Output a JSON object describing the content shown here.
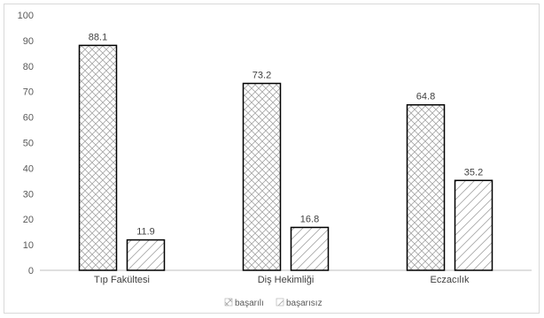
{
  "chart_data": {
    "type": "bar",
    "categories": [
      "Tıp Fakültesi",
      "Diş Hekimliği",
      "Eczacılık"
    ],
    "series": [
      {
        "name": "başarılı",
        "values": [
          88.1,
          73.2,
          64.8
        ],
        "pattern": "crosshatch"
      },
      {
        "name": "başarısız",
        "values": [
          11.9,
          16.8,
          35.2
        ],
        "pattern": "diagonal"
      }
    ],
    "yticks": [
      0,
      10,
      20,
      30,
      40,
      50,
      60,
      70,
      80,
      90,
      100
    ],
    "ylim": [
      0,
      100
    ],
    "title": "",
    "xlabel": "",
    "ylabel": "",
    "grid": false,
    "legend_position": "bottom",
    "colors": {
      "bar_stroke": "#000000",
      "pattern": "#a6a6a6",
      "axis": "#bfbfbf",
      "text": "#404040"
    }
  }
}
